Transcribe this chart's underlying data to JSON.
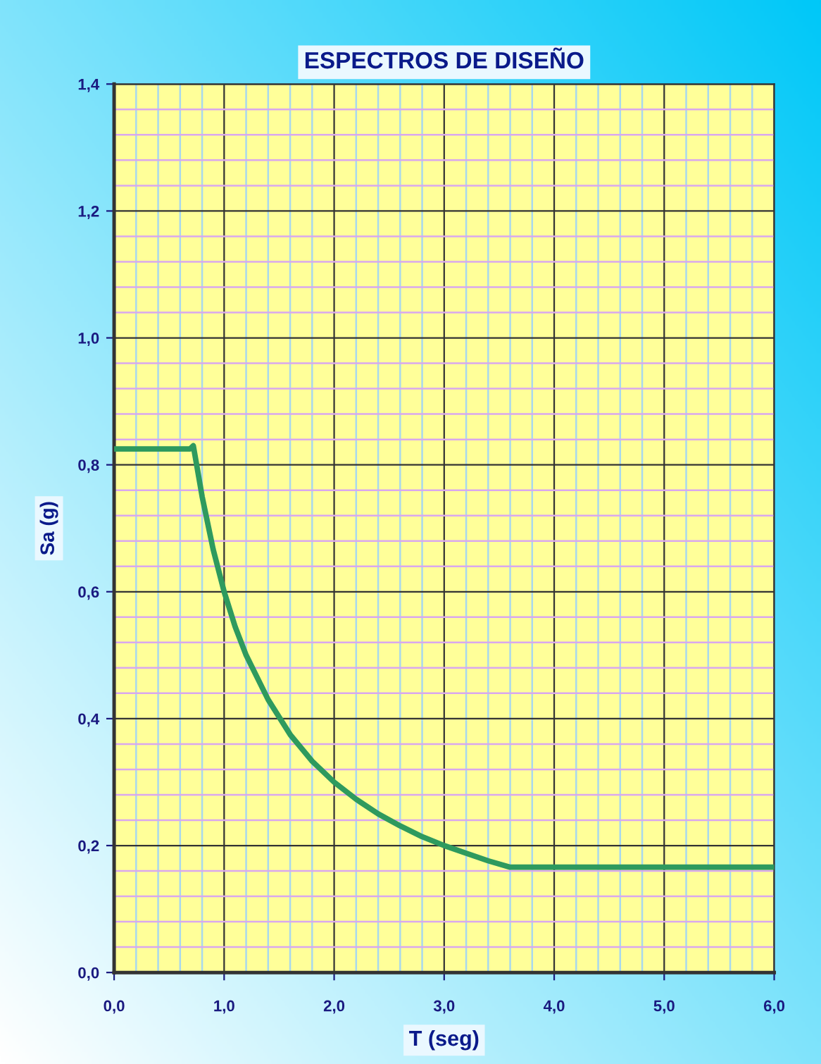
{
  "chart_data": {
    "type": "line",
    "title": "ESPECTROS DE DISEÑO",
    "xlabel": "T (seg)",
    "ylabel": "Sa (g)",
    "x": [
      0.0,
      0.2,
      0.4,
      0.6,
      0.69,
      0.72,
      0.8,
      0.9,
      1.0,
      1.1,
      1.2,
      1.4,
      1.6,
      1.8,
      2.0,
      2.2,
      2.4,
      2.6,
      2.8,
      3.0,
      3.2,
      3.4,
      3.6,
      4.0,
      5.0,
      6.0
    ],
    "series": [
      {
        "color": "#2e9a5e",
        "values": [
          0.825,
          0.825,
          0.825,
          0.825,
          0.825,
          0.83,
          0.75,
          0.667,
          0.6,
          0.545,
          0.5,
          0.43,
          0.375,
          0.333,
          0.3,
          0.273,
          0.25,
          0.231,
          0.214,
          0.2,
          0.188,
          0.176,
          0.166,
          0.166,
          0.166,
          0.166
        ]
      }
    ],
    "xlim": [
      0,
      6
    ],
    "ylim": [
      0,
      1.4
    ],
    "xticks": [
      {
        "value": 0,
        "label": "0,0"
      },
      {
        "value": 0.2,
        "label": null
      },
      {
        "value": 0.4,
        "label": null
      },
      {
        "value": 0.6,
        "label": null
      },
      {
        "value": 0.8,
        "label": null
      },
      {
        "value": 1,
        "label": "1,0"
      },
      {
        "value": 1.2,
        "label": null
      },
      {
        "value": 1.4,
        "label": null
      },
      {
        "value": 1.6,
        "label": null
      },
      {
        "value": 1.8,
        "label": null
      },
      {
        "value": 2,
        "label": "2,0"
      },
      {
        "value": 2.2,
        "label": null
      },
      {
        "value": 2.4,
        "label": null
      },
      {
        "value": 2.6,
        "label": null
      },
      {
        "value": 2.8,
        "label": null
      },
      {
        "value": 3,
        "label": "3,0"
      },
      {
        "value": 3.2,
        "label": null
      },
      {
        "value": 3.4,
        "label": null
      },
      {
        "value": 3.6,
        "label": null
      },
      {
        "value": 3.8,
        "label": null
      },
      {
        "value": 4,
        "label": "4,0"
      },
      {
        "value": 4.2,
        "label": null
      },
      {
        "value": 4.4,
        "label": null
      },
      {
        "value": 4.6,
        "label": null
      },
      {
        "value": 4.8,
        "label": null
      },
      {
        "value": 5,
        "label": "5,0"
      },
      {
        "value": 5.2,
        "label": null
      },
      {
        "value": 5.4,
        "label": null
      },
      {
        "value": 5.6,
        "label": null
      },
      {
        "value": 5.8,
        "label": null
      },
      {
        "value": 6,
        "label": "6,0"
      }
    ],
    "yticks": [
      {
        "value": 0,
        "label": "0,0"
      },
      {
        "value": 0.04,
        "label": null
      },
      {
        "value": 0.08,
        "label": null
      },
      {
        "value": 0.12,
        "label": null
      },
      {
        "value": 0.16,
        "label": null
      },
      {
        "value": 0.2,
        "label": "0,2"
      },
      {
        "value": 0.24,
        "label": null
      },
      {
        "value": 0.28,
        "label": null
      },
      {
        "value": 0.32,
        "label": null
      },
      {
        "value": 0.36,
        "label": null
      },
      {
        "value": 0.4,
        "label": "0,4"
      },
      {
        "value": 0.44,
        "label": null
      },
      {
        "value": 0.48,
        "label": null
      },
      {
        "value": 0.52,
        "label": null
      },
      {
        "value": 0.56,
        "label": null
      },
      {
        "value": 0.6,
        "label": "0,6"
      },
      {
        "value": 0.64,
        "label": null
      },
      {
        "value": 0.68,
        "label": null
      },
      {
        "value": 0.72,
        "label": null
      },
      {
        "value": 0.76,
        "label": null
      },
      {
        "value": 0.8,
        "label": "0,8"
      },
      {
        "value": 0.84,
        "label": null
      },
      {
        "value": 0.88,
        "label": null
      },
      {
        "value": 0.92,
        "label": null
      },
      {
        "value": 0.96,
        "label": null
      },
      {
        "value": 1.0,
        "label": "1,0"
      },
      {
        "value": 1.04,
        "label": null
      },
      {
        "value": 1.08,
        "label": null
      },
      {
        "value": 1.12,
        "label": null
      },
      {
        "value": 1.16,
        "label": null
      },
      {
        "value": 1.2,
        "label": "1,2"
      },
      {
        "value": 1.24,
        "label": null
      },
      {
        "value": 1.28,
        "label": null
      },
      {
        "value": 1.32,
        "label": null
      },
      {
        "value": 1.36,
        "label": null
      },
      {
        "value": 1.4,
        "label": "1,4"
      }
    ],
    "grid": true,
    "legend": false,
    "marker": "none",
    "line_style": "solid"
  }
}
